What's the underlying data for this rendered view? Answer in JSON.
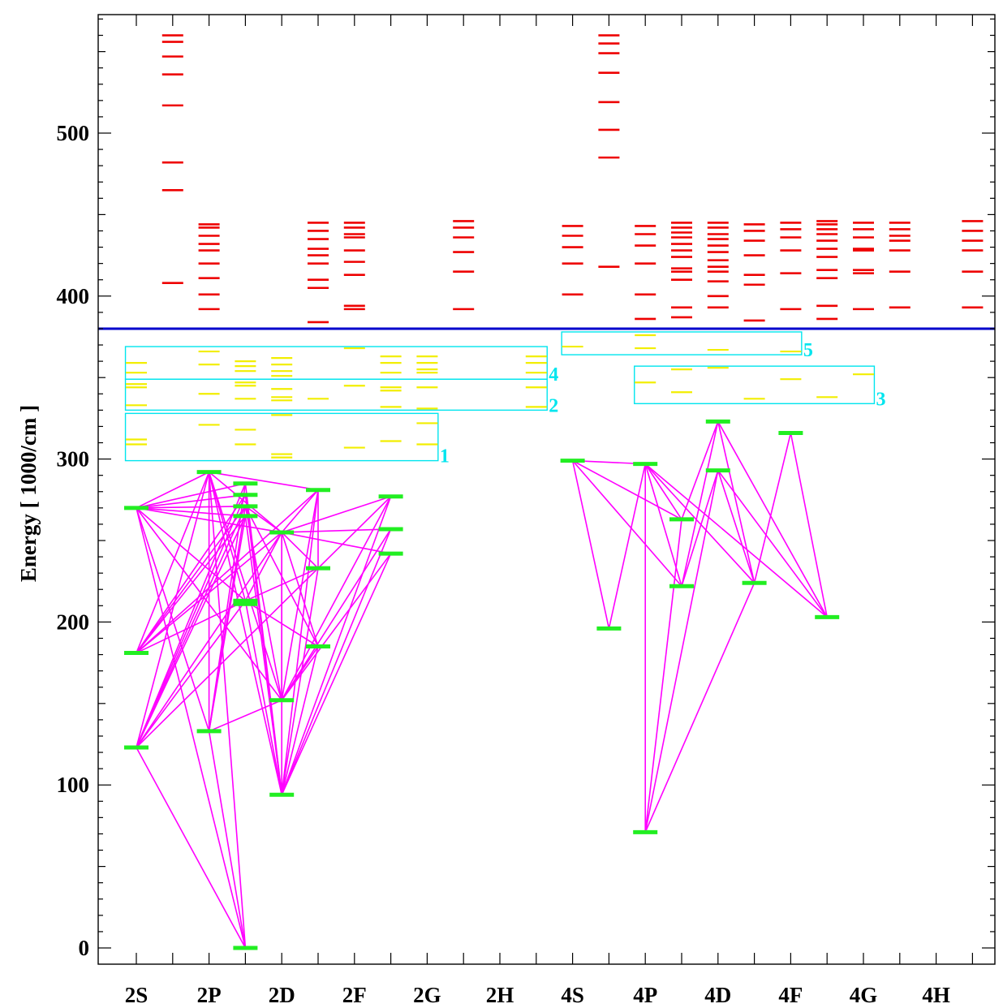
{
  "chart_data": {
    "type": "energy-level diagram",
    "title": "",
    "ylabel": "Energy  [ 1000/cm ]",
    "xlabel": "",
    "ylim": [
      -10,
      570
    ],
    "y_ticks": [
      0,
      100,
      200,
      300,
      400,
      500
    ],
    "columns": [
      "2S",
      "",
      "2P",
      "",
      "2D",
      "",
      "2F",
      "",
      "2G",
      "",
      "2H",
      "",
      "4S",
      "",
      "4P",
      "",
      "4D",
      "",
      "4F",
      "",
      "4G",
      "",
      "4H",
      ""
    ],
    "ionization_limit": 380,
    "colors": {
      "axis": "#000000",
      "ionization_line": "#0000cc",
      "lower_levels": "#22ee22",
      "upper_levels": "#ee0000",
      "box_levels": "#f2ee00",
      "transitions": "#ff00ff",
      "boxes": "#00e5ee"
    },
    "lower_levels": [
      {
        "col": 0,
        "e": 270
      },
      {
        "col": 0,
        "e": 181
      },
      {
        "col": 0,
        "e": 123
      },
      {
        "col": 2,
        "e": 292
      },
      {
        "col": 2,
        "e": 133
      },
      {
        "col": 3,
        "e": 285
      },
      {
        "col": 3,
        "e": 278
      },
      {
        "col": 3,
        "e": 271
      },
      {
        "col": 3,
        "e": 265
      },
      {
        "col": 3,
        "e": 213
      },
      {
        "col": 3,
        "e": 211
      },
      {
        "col": 3,
        "e": 0
      },
      {
        "col": 4,
        "e": 255
      },
      {
        "col": 4,
        "e": 152
      },
      {
        "col": 4,
        "e": 94
      },
      {
        "col": 5,
        "e": 281
      },
      {
        "col": 5,
        "e": 233
      },
      {
        "col": 5,
        "e": 185
      },
      {
        "col": 7,
        "e": 277
      },
      {
        "col": 7,
        "e": 257
      },
      {
        "col": 7,
        "e": 242
      },
      {
        "col": 12,
        "e": 299
      },
      {
        "col": 13,
        "e": 196
      },
      {
        "col": 14,
        "e": 297
      },
      {
        "col": 14,
        "e": 71
      },
      {
        "col": 15,
        "e": 263
      },
      {
        "col": 15,
        "e": 222
      },
      {
        "col": 16,
        "e": 323
      },
      {
        "col": 16,
        "e": 293
      },
      {
        "col": 17,
        "e": 224
      },
      {
        "col": 18,
        "e": 316
      },
      {
        "col": 19,
        "e": 203
      }
    ],
    "transitions": [
      [
        0,
        3
      ],
      [
        0,
        4
      ],
      [
        0,
        5
      ],
      [
        0,
        6
      ],
      [
        0,
        7
      ],
      [
        0,
        8
      ],
      [
        0,
        9
      ],
      [
        0,
        12
      ],
      [
        0,
        13
      ],
      [
        0,
        11
      ],
      [
        1,
        3
      ],
      [
        1,
        6
      ],
      [
        1,
        7
      ],
      [
        1,
        8
      ],
      [
        1,
        9
      ],
      [
        1,
        12
      ],
      [
        1,
        15
      ],
      [
        2,
        3
      ],
      [
        2,
        5
      ],
      [
        2,
        6
      ],
      [
        2,
        7
      ],
      [
        2,
        8
      ],
      [
        2,
        9
      ],
      [
        2,
        12
      ],
      [
        2,
        18
      ],
      [
        2,
        11
      ],
      [
        4,
        3
      ],
      [
        4,
        5
      ],
      [
        4,
        7
      ],
      [
        4,
        8
      ],
      [
        4,
        13
      ],
      [
        4,
        11
      ],
      [
        3,
        9
      ],
      [
        3,
        12
      ],
      [
        3,
        13
      ],
      [
        3,
        14
      ],
      [
        3,
        15
      ],
      [
        3,
        11
      ],
      [
        5,
        14
      ],
      [
        6,
        14
      ],
      [
        7,
        12
      ],
      [
        7,
        13
      ],
      [
        7,
        17
      ],
      [
        8,
        14
      ],
      [
        9,
        14
      ],
      [
        9,
        12
      ],
      [
        12,
        15
      ],
      [
        12,
        18
      ],
      [
        12,
        19
      ],
      [
        12,
        20
      ],
      [
        12,
        17
      ],
      [
        12,
        13
      ],
      [
        12,
        14
      ],
      [
        13,
        15
      ],
      [
        13,
        18
      ],
      [
        13,
        19
      ],
      [
        13,
        20
      ],
      [
        13,
        17
      ],
      [
        14,
        15
      ],
      [
        14,
        18
      ],
      [
        14,
        19
      ],
      [
        14,
        20
      ],
      [
        14,
        17
      ],
      [
        14,
        16
      ],
      [
        9,
        16
      ],
      [
        9,
        17
      ],
      [
        12,
        16
      ],
      [
        15,
        16
      ],
      [
        21,
        22
      ],
      [
        21,
        25
      ],
      [
        21,
        26
      ],
      [
        21,
        23
      ],
      [
        22,
        23
      ],
      [
        24,
        23
      ],
      [
        24,
        25
      ],
      [
        24,
        28
      ],
      [
        24,
        29
      ],
      [
        23,
        25
      ],
      [
        23,
        26
      ],
      [
        23,
        29
      ],
      [
        23,
        31
      ],
      [
        26,
        27
      ],
      [
        26,
        28
      ],
      [
        27,
        29
      ],
      [
        27,
        31
      ],
      [
        28,
        29
      ],
      [
        28,
        31
      ],
      [
        29,
        30
      ],
      [
        30,
        31
      ],
      [
        25,
        27
      ]
    ],
    "upper_levels": [
      {
        "col": 1,
        "energies": [
          560,
          556,
          547,
          536,
          517,
          482,
          465,
          408
        ]
      },
      {
        "col": 2,
        "energies": [
          444,
          442,
          437,
          432,
          428,
          420,
          411,
          401,
          392
        ]
      },
      {
        "col": 5,
        "energies": [
          445,
          440,
          435,
          429,
          425,
          420,
          410,
          405,
          384,
          380
        ]
      },
      {
        "col": 6,
        "energies": [
          445,
          442,
          438,
          436,
          428,
          421,
          413,
          394,
          392
        ]
      },
      {
        "col": 9,
        "energies": [
          446,
          442,
          436,
          427,
          415,
          392
        ]
      },
      {
        "col": 12,
        "energies": [
          443,
          437,
          430,
          420,
          401
        ]
      },
      {
        "col": 13,
        "energies": [
          560,
          555,
          549,
          537,
          519,
          502,
          485,
          418
        ]
      },
      {
        "col": 14,
        "energies": [
          443,
          438,
          431,
          420,
          401,
          386,
          380
        ]
      },
      {
        "col": 15,
        "energies": [
          445,
          442,
          439,
          436,
          432,
          428,
          424,
          417,
          415,
          410,
          393,
          387
        ]
      },
      {
        "col": 16,
        "energies": [
          445,
          442,
          438,
          435,
          431,
          427,
          422,
          418,
          415,
          409,
          400,
          393
        ]
      },
      {
        "col": 17,
        "energies": [
          444,
          440,
          434,
          425,
          413,
          407,
          385
        ]
      },
      {
        "col": 18,
        "energies": [
          445,
          441,
          436,
          428,
          414,
          392
        ]
      },
      {
        "col": 19,
        "energies": [
          446,
          444,
          441,
          438,
          434,
          429,
          424,
          416,
          411,
          394,
          386
        ]
      },
      {
        "col": 20,
        "energies": [
          445,
          441,
          436,
          429,
          428,
          416,
          414,
          392
        ]
      },
      {
        "col": 21,
        "energies": [
          445,
          441,
          437,
          434,
          428,
          415,
          393
        ]
      },
      {
        "col": 23,
        "energies": [
          446,
          440,
          434,
          428,
          415,
          393
        ]
      }
    ],
    "box_levels": [
      {
        "col": 0,
        "energies": [
          359,
          353,
          346,
          344,
          333,
          312,
          309
        ]
      },
      {
        "col": 2,
        "energies": [
          366,
          358,
          340,
          321
        ]
      },
      {
        "col": 3,
        "energies": [
          360,
          357,
          354,
          347,
          345,
          337,
          318,
          309
        ]
      },
      {
        "col": 4,
        "energies": [
          362,
          358,
          354,
          351,
          343,
          338,
          336,
          327,
          303,
          301
        ]
      },
      {
        "col": 5,
        "energies": [
          337
        ]
      },
      {
        "col": 6,
        "energies": [
          368,
          345,
          307
        ]
      },
      {
        "col": 7,
        "energies": [
          363,
          359,
          353,
          344,
          342,
          332,
          311
        ]
      },
      {
        "col": 8,
        "energies": [
          363,
          359,
          355,
          353,
          344,
          331,
          322,
          309
        ]
      },
      {
        "col": 11,
        "energies": [
          363,
          359,
          353,
          344,
          332
        ]
      },
      {
        "col": 12,
        "energies": [
          369
        ]
      },
      {
        "col": 14,
        "energies": [
          376,
          368,
          347
        ]
      },
      {
        "col": 15,
        "energies": [
          355,
          341
        ]
      },
      {
        "col": 16,
        "energies": [
          367,
          356
        ]
      },
      {
        "col": 17,
        "energies": [
          337
        ]
      },
      {
        "col": 18,
        "energies": [
          366,
          349
        ]
      },
      {
        "col": 19,
        "energies": [
          338
        ]
      },
      {
        "col": 20,
        "energies": [
          352
        ]
      }
    ],
    "boxes": [
      {
        "label": "1",
        "col_from": -0.3,
        "col_to": 8.3,
        "e_low": 299,
        "e_high": 328
      },
      {
        "label": "2",
        "col_from": -0.3,
        "col_to": 11.3,
        "e_low": 330,
        "e_high": 349
      },
      {
        "label": "4",
        "col_from": -0.3,
        "col_to": 11.3,
        "e_low": 349,
        "e_high": 369
      },
      {
        "label": "5",
        "col_from": 11.7,
        "col_to": 18.3,
        "e_low": 364,
        "e_high": 378
      },
      {
        "label": "3",
        "col_from": 13.7,
        "col_to": 20.3,
        "e_low": 334,
        "e_high": 357
      }
    ]
  }
}
